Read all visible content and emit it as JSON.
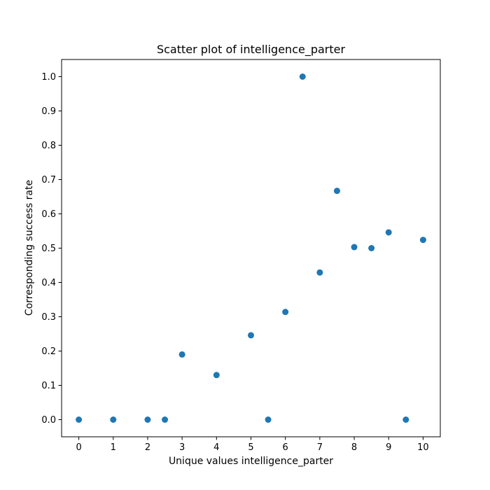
{
  "chart_data": {
    "type": "scatter",
    "title": "Scatter plot of intelligence_parter",
    "xlabel": "Unique values intelligence_parter",
    "ylabel": "Corresponding success rate",
    "xlim": [
      -0.5,
      10.5
    ],
    "ylim": [
      -0.05,
      1.05
    ],
    "xticks": [
      0,
      1,
      2,
      3,
      4,
      5,
      6,
      7,
      8,
      9,
      10
    ],
    "xtick_labels": [
      "0",
      "1",
      "2",
      "3",
      "4",
      "5",
      "6",
      "7",
      "8",
      "9",
      "10"
    ],
    "yticks": [
      0.0,
      0.1,
      0.2,
      0.3,
      0.4,
      0.5,
      0.6,
      0.7,
      0.8,
      0.9,
      1.0
    ],
    "ytick_labels": [
      "0.0",
      "0.1",
      "0.2",
      "0.3",
      "0.4",
      "0.5",
      "0.6",
      "0.7",
      "0.8",
      "0.9",
      "1.0"
    ],
    "grid": false,
    "color": "#1f77b4",
    "series": [
      {
        "x": [
          0,
          1,
          2,
          2.5,
          3,
          4,
          5,
          5.5,
          6,
          6.5,
          7,
          7.5,
          8,
          8.5,
          9,
          9.5,
          10
        ],
        "y": [
          0.0,
          0.0,
          0.0,
          0.0,
          0.19,
          0.13,
          0.246,
          0.0,
          0.314,
          1.0,
          0.429,
          0.667,
          0.503,
          0.5,
          0.546,
          0.0,
          0.524
        ]
      }
    ]
  }
}
